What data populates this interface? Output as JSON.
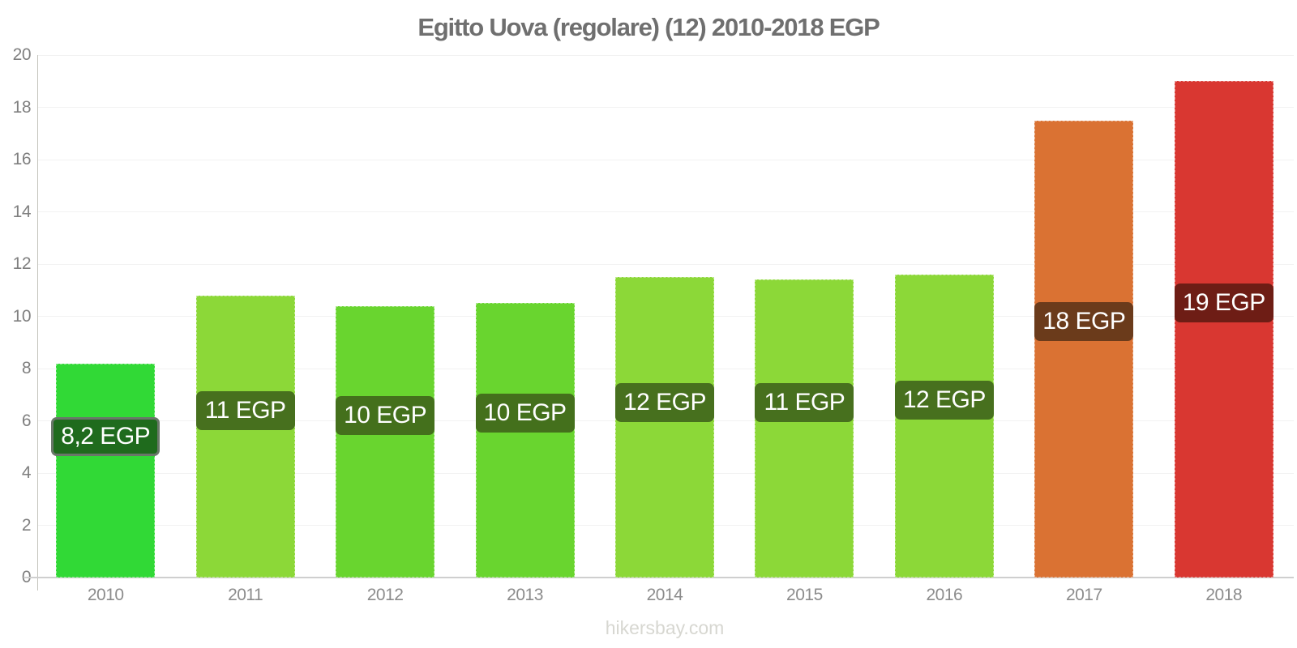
{
  "chart_data": {
    "type": "bar",
    "title": "Egitto Uova (regolare) (12) 2010-2018 EGP",
    "xlabel": "",
    "ylabel": "",
    "ylim": [
      0,
      20
    ],
    "ytick_step": 2,
    "yticks": [
      0,
      2,
      4,
      6,
      8,
      10,
      12,
      14,
      16,
      18,
      20
    ],
    "grid": true,
    "legend": "none",
    "categories": [
      "2010",
      "2011",
      "2012",
      "2013",
      "2014",
      "2015",
      "2016",
      "2017",
      "2018"
    ],
    "values": [
      8.2,
      10.8,
      10.4,
      10.5,
      11.5,
      11.4,
      11.6,
      17.5,
      19.0
    ],
    "bars": [
      {
        "year": "2010",
        "value": 8.2,
        "label": "8,2 EGP",
        "color": "#31d936",
        "label_bg": "#1f6b1d",
        "label_y": 5.4,
        "highlighted": true
      },
      {
        "year": "2011",
        "value": 10.8,
        "label": "11 EGP",
        "color": "#8cd838",
        "label_bg": "#47701e",
        "label_y": 6.4,
        "highlighted": false
      },
      {
        "year": "2012",
        "value": 10.4,
        "label": "10 EGP",
        "color": "#69d52f",
        "label_bg": "#44701c",
        "label_y": 6.2,
        "highlighted": false
      },
      {
        "year": "2013",
        "value": 10.5,
        "label": "10 EGP",
        "color": "#69d52f",
        "label_bg": "#44701c",
        "label_y": 6.3,
        "highlighted": false
      },
      {
        "year": "2014",
        "value": 11.5,
        "label": "12 EGP",
        "color": "#8cd838",
        "label_bg": "#47701e",
        "label_y": 6.7,
        "highlighted": false
      },
      {
        "year": "2015",
        "value": 11.4,
        "label": "11 EGP",
        "color": "#8cd838",
        "label_bg": "#47701e",
        "label_y": 6.7,
        "highlighted": false
      },
      {
        "year": "2016",
        "value": 11.6,
        "label": "12 EGP",
        "color": "#8cd838",
        "label_bg": "#47701e",
        "label_y": 6.8,
        "highlighted": false
      },
      {
        "year": "2017",
        "value": 17.5,
        "label": "18 EGP",
        "color": "#da7233",
        "label_bg": "#6b3b1b",
        "label_y": 9.8,
        "highlighted": false
      },
      {
        "year": "2018",
        "value": 19.0,
        "label": "19 EGP",
        "color": "#d93731",
        "label_bg": "#6e1d15",
        "label_y": 10.5,
        "highlighted": false
      }
    ],
    "axis_colors": {
      "y_axis_line": "#c2c2ba",
      "baseline": "#cfcfcf",
      "gridline": "#f2f2f2",
      "tick_label": "#7f7f7f"
    }
  },
  "footer": {
    "watermark": "hikersbay.com"
  }
}
